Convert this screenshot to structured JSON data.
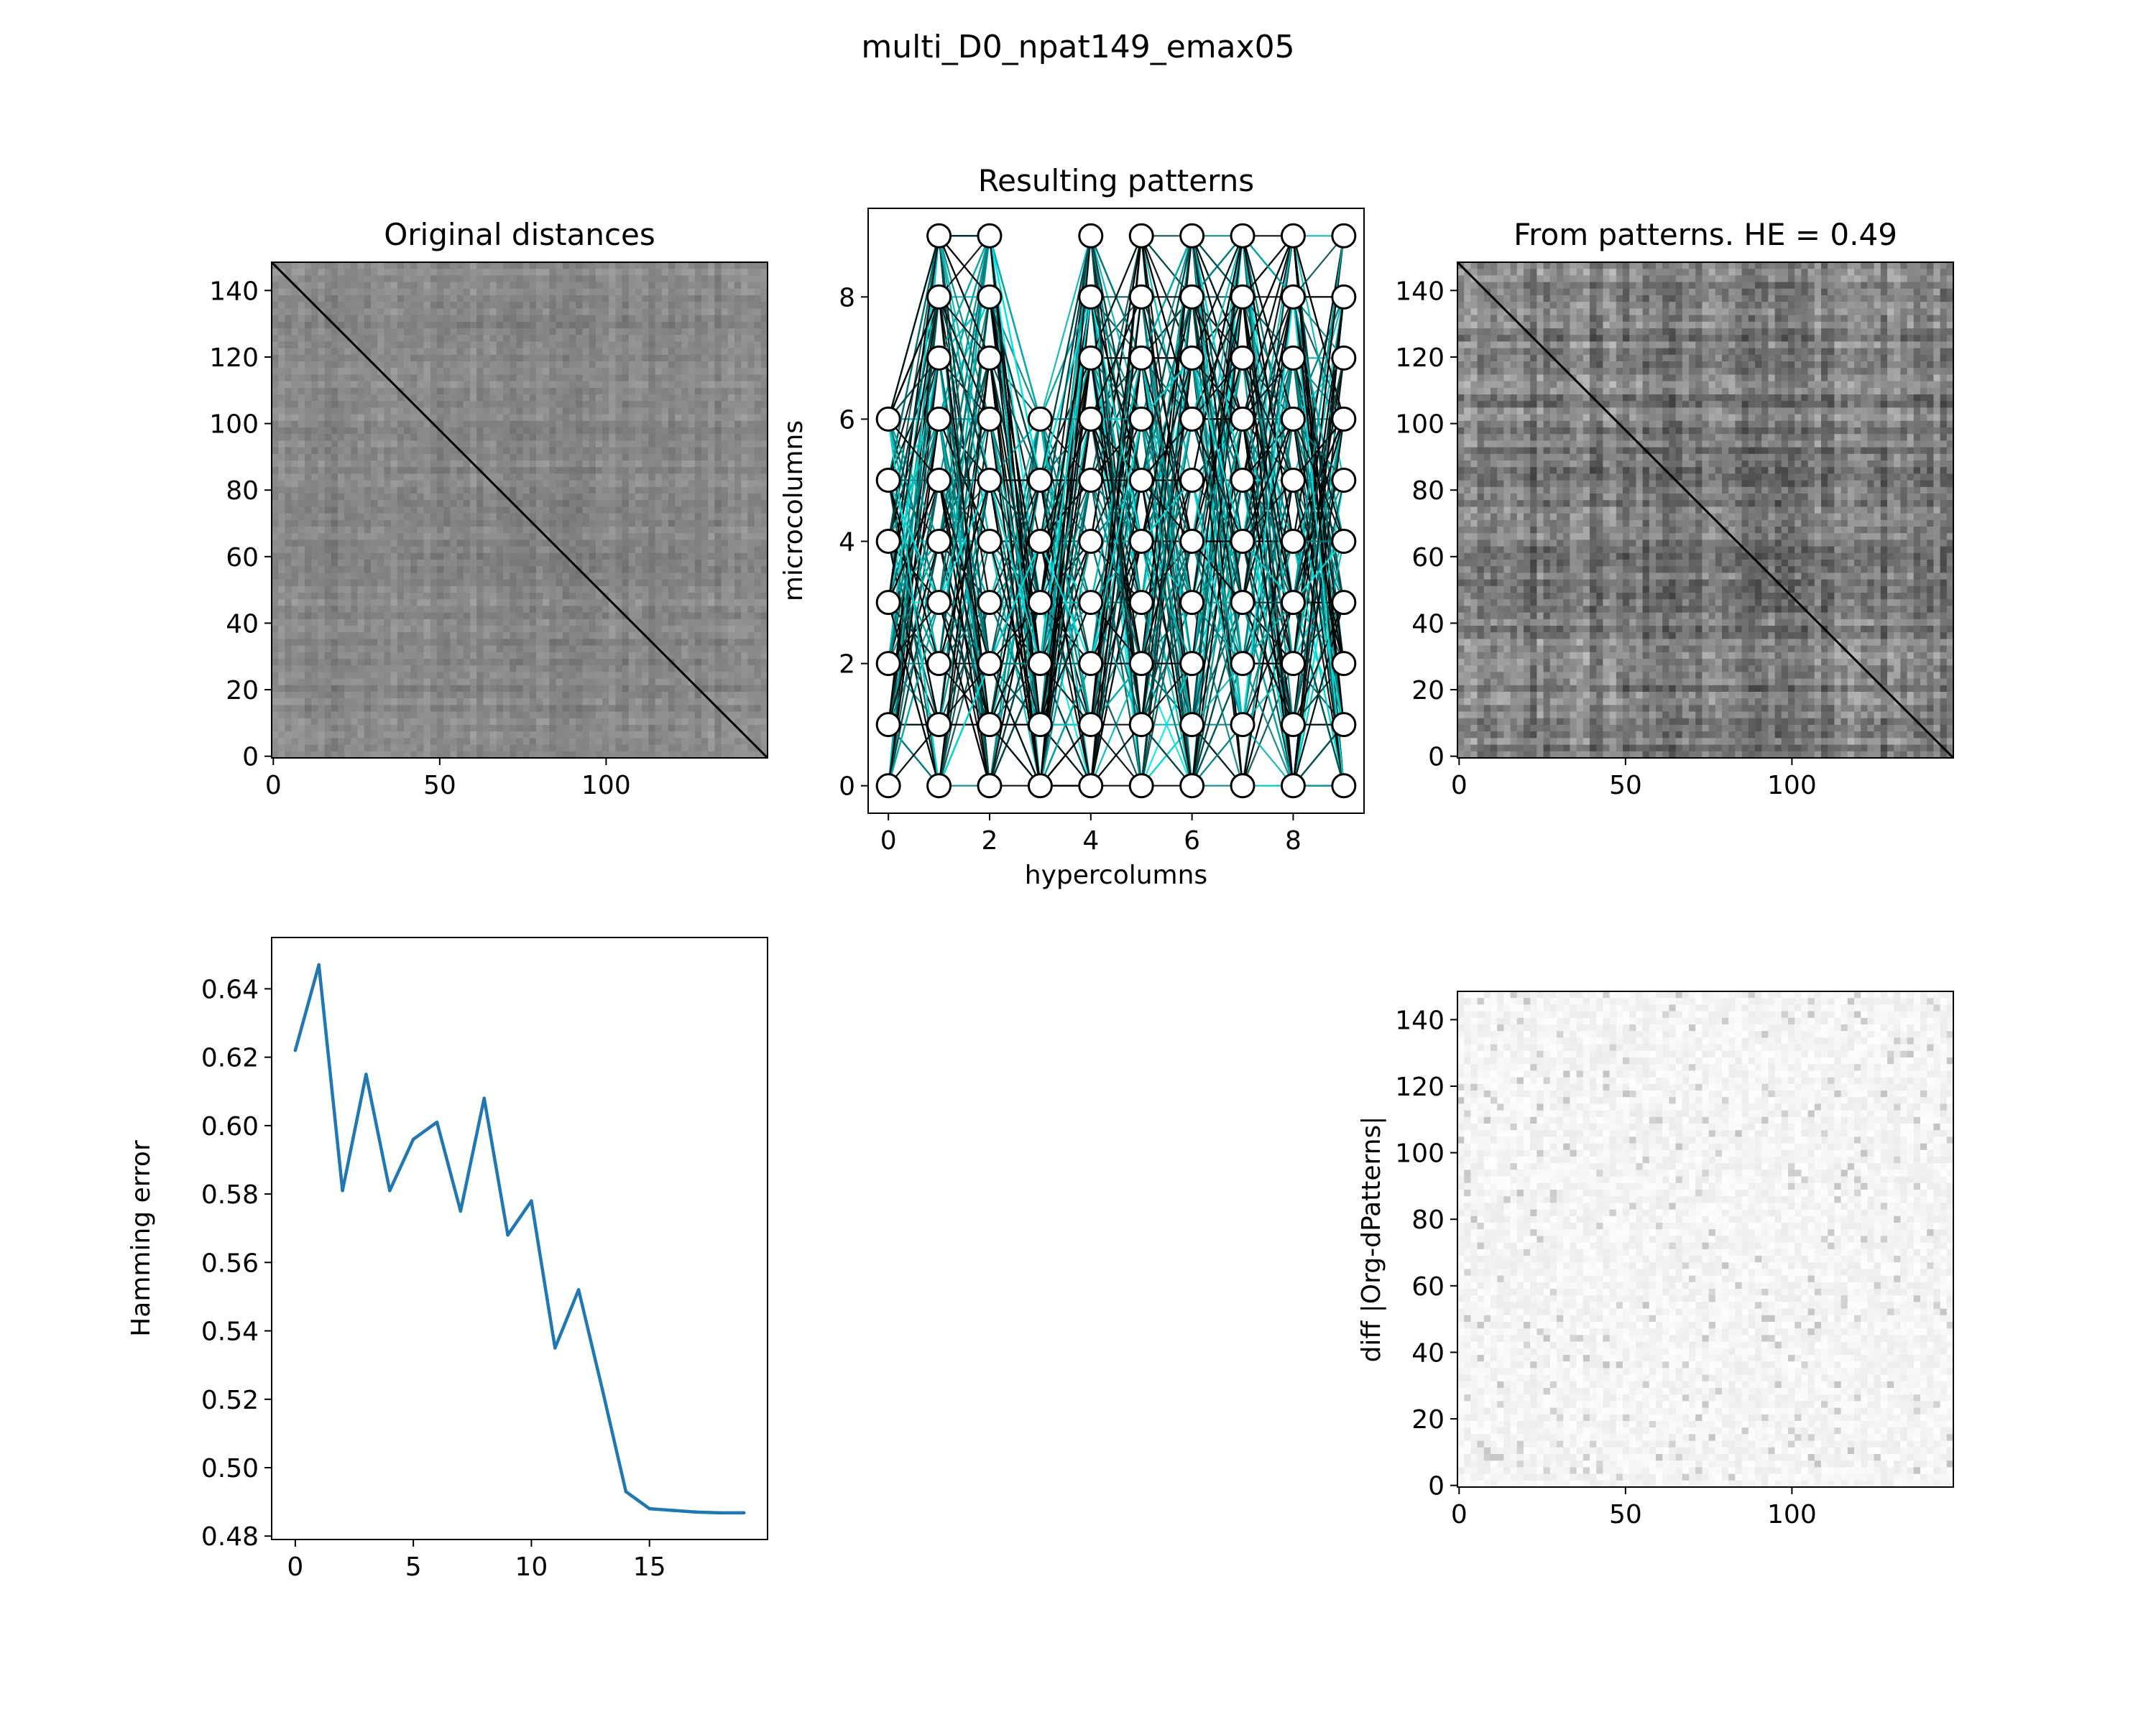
{
  "figure": {
    "suptitle": "multi_D0_npat149_emax05"
  },
  "chart_data": [
    {
      "type": "heatmap",
      "title": "Original distances",
      "xlabel": "",
      "ylabel": "",
      "n": 149,
      "xlim": [
        0,
        149
      ],
      "ylim": [
        149,
        0
      ],
      "xticks": [
        0,
        50,
        100
      ],
      "yticks": [
        0,
        20,
        40,
        60,
        80,
        100,
        120,
        140
      ],
      "colormap": "gray",
      "description_values": {
        "diagonal": 0,
        "offdiag_typical": "mid-gray"
      }
    },
    {
      "type": "scatter",
      "title": "Resulting patterns",
      "xlabel": "hypercolumns",
      "ylabel": "microcolumns",
      "xlim": [
        -0.4,
        9.4
      ],
      "ylim": [
        -0.45,
        9.45
      ],
      "xticks": [
        0,
        2,
        4,
        6,
        8
      ],
      "yticks": [
        0,
        2,
        4,
        6,
        8
      ],
      "node_columns": [
        {
          "x": 0,
          "y": [
            0,
            1,
            2,
            3,
            4,
            5,
            6
          ]
        },
        {
          "x": 1,
          "y": [
            0,
            1,
            2,
            3,
            4,
            5,
            6,
            7,
            8,
            9
          ]
        },
        {
          "x": 2,
          "y": [
            0,
            1,
            2,
            3,
            4,
            5,
            6,
            7,
            8,
            9
          ]
        },
        {
          "x": 3,
          "y": [
            0,
            1,
            2,
            3,
            4,
            5,
            6
          ]
        },
        {
          "x": 4,
          "y": [
            0,
            1,
            2,
            3,
            4,
            5,
            6,
            7,
            8,
            9
          ]
        },
        {
          "x": 5,
          "y": [
            0,
            1,
            2,
            3,
            4,
            5,
            6,
            7,
            8,
            9
          ]
        },
        {
          "x": 6,
          "y": [
            0,
            1,
            2,
            3,
            4,
            5,
            6,
            7,
            8,
            9
          ]
        },
        {
          "x": 7,
          "y": [
            0,
            1,
            2,
            3,
            4,
            5,
            6,
            7,
            8,
            9
          ]
        },
        {
          "x": 8,
          "y": [
            0,
            1,
            2,
            3,
            4,
            5,
            6,
            7,
            8,
            9
          ]
        },
        {
          "x": 9,
          "y": [
            0,
            1,
            2,
            3,
            4,
            5,
            6,
            7,
            8,
            9
          ]
        }
      ],
      "line_colors": [
        "#00e5e5",
        "#00b3b3",
        "#008080",
        "#004c4c",
        "#000000"
      ],
      "n_patterns": 149
    },
    {
      "type": "heatmap",
      "title": "From patterns. HE = 0.49",
      "xlabel": "",
      "ylabel": "",
      "n": 149,
      "xlim": [
        0,
        149
      ],
      "ylim": [
        149,
        0
      ],
      "xticks": [
        0,
        50,
        100
      ],
      "yticks": [
        0,
        20,
        40,
        60,
        80,
        100,
        120,
        140
      ],
      "colormap": "gray"
    },
    {
      "type": "line",
      "title": "",
      "xlabel": "",
      "ylabel": "Hamming error",
      "xlim": [
        -1,
        20
      ],
      "ylim": [
        0.479,
        0.655
      ],
      "xticks": [
        0,
        5,
        10,
        15
      ],
      "yticks": [
        0.48,
        0.5,
        0.52,
        0.54,
        0.56,
        0.58,
        0.6,
        0.62,
        0.64
      ],
      "ytick_labels": [
        "0.48",
        "0.50",
        "0.52",
        "0.54",
        "0.56",
        "0.58",
        "0.60",
        "0.62",
        "0.64"
      ],
      "color": "#1f77b4",
      "x": [
        0,
        1,
        2,
        3,
        4,
        5,
        6,
        7,
        8,
        9,
        10,
        11,
        12,
        13,
        14,
        15,
        16,
        17,
        18,
        19
      ],
      "y": [
        0.622,
        0.647,
        0.581,
        0.615,
        0.581,
        0.596,
        0.601,
        0.575,
        0.608,
        0.568,
        0.578,
        0.535,
        0.552,
        0.523,
        0.493,
        0.488,
        0.4875,
        0.487,
        0.4868,
        0.4868
      ]
    },
    {
      "type": "heatmap",
      "title": "",
      "xlabel": "",
      "ylabel": "diff |Org-dPatterns|",
      "n": 149,
      "xlim": [
        0,
        149
      ],
      "ylim": [
        149,
        0
      ],
      "xticks": [
        0,
        50,
        100
      ],
      "yticks": [
        0,
        20,
        40,
        60,
        80,
        100,
        120,
        140
      ],
      "colormap": "gray_r"
    }
  ]
}
